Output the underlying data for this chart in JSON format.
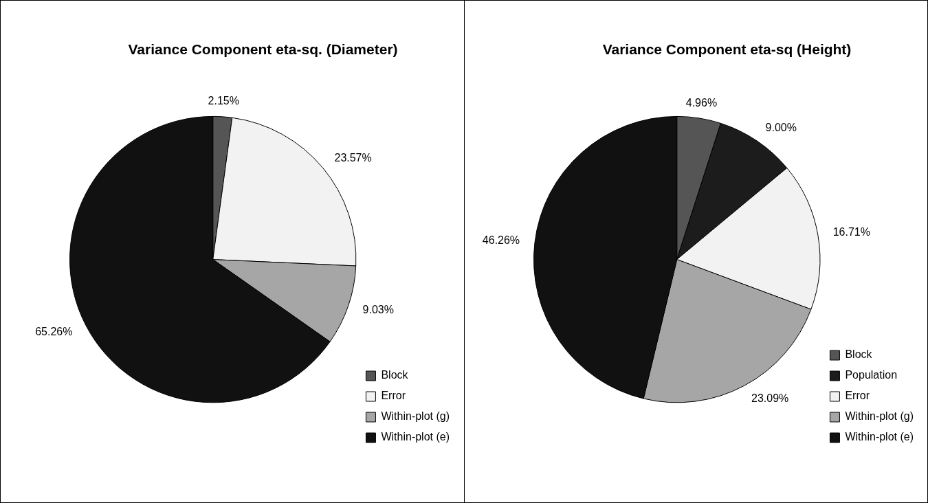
{
  "chart_data": [
    {
      "type": "pie",
      "title": "Variance Component eta-sq. (Diameter)",
      "categories": [
        "Block",
        "Error",
        "Within-plot (g)",
        "Within-plot (e)"
      ],
      "values": [
        2.15,
        23.57,
        9.03,
        65.26
      ],
      "colors": [
        "#555555",
        "#f2f2f2",
        "#a6a6a6",
        "#111111"
      ],
      "value_labels": [
        "2.15%",
        "23.57%",
        "9.03%",
        "65.26%"
      ],
      "legend": "bottom right"
    },
    {
      "type": "pie",
      "title": "Variance Component eta-sq (Height)",
      "categories": [
        "Block",
        "Population",
        "Error",
        "Within-plot (g)",
        "Within-plot (e)"
      ],
      "values": [
        4.96,
        9.0,
        16.71,
        23.09,
        46.26
      ],
      "colors": [
        "#555555",
        "#1c1c1c",
        "#f2f2f2",
        "#a6a6a6",
        "#111111"
      ],
      "value_labels": [
        "4.96%",
        "9.00%",
        "16.71%",
        "23.09%",
        "46.26%"
      ],
      "legend": "bottom right"
    }
  ]
}
